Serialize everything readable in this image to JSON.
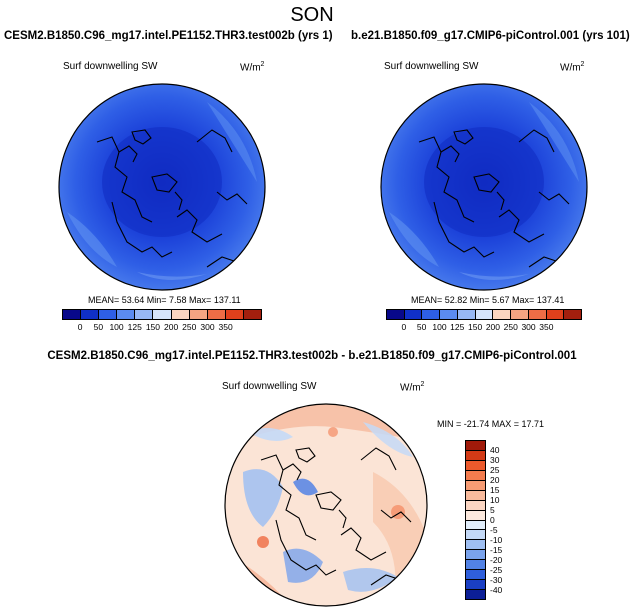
{
  "season": "SON",
  "panels": {
    "left": {
      "case": "CESM2.B1850.C96_mg17.intel.PE1152.THR3.test002b (yrs 1)",
      "variable": "Surf downwelling SW",
      "units_base": "W/m",
      "units_exp": "2",
      "stats": "MEAN=  53.64  Min=   7.58  Max= 137.11"
    },
    "right": {
      "case": "b.e21.B1850.f09_g17.CMIP6-piControl.001 (yrs 101)",
      "variable": "Surf downwelling SW",
      "units_base": "W/m",
      "units_exp": "2",
      "stats": "MEAN=  52.82  Min=   5.67  Max= 137.41"
    },
    "diff": {
      "title": "CESM2.B1850.C96_mg17.intel.PE1152.THR3.test002b - b.e21.B1850.f09_g17.CMIP6-piControl.001",
      "variable": "Surf downwelling SW",
      "units_base": "W/m",
      "units_exp": "2",
      "stats": "MIN = -21.74 MAX =  17.71"
    }
  },
  "colorbar_abs": {
    "labels": [
      "0",
      "50",
      "100",
      "125",
      "150",
      "200",
      "250",
      "300",
      "350"
    ],
    "colors": [
      "#08088a",
      "#1030c8",
      "#2e5fe6",
      "#5b8bf0",
      "#98b8f5",
      "#d6e4fb",
      "#fbd5c0",
      "#f5a482",
      "#ee6d46",
      "#e0401c",
      "#a31f0e"
    ]
  },
  "colorbar_diff": {
    "labels": [
      "40",
      "30",
      "25",
      "20",
      "15",
      "10",
      "5",
      "0",
      "-5",
      "-10",
      "-15",
      "-20",
      "-25",
      "-30",
      "-40"
    ],
    "colors": [
      "#a01a0a",
      "#d33a16",
      "#ec5a2c",
      "#f47c4e",
      "#f79c74",
      "#f9bb9d",
      "#fbd6c3",
      "#fce9de",
      "#e2eefb",
      "#c4d9f7",
      "#9fbff2",
      "#7aa3ec",
      "#5282e5",
      "#2f5fdc",
      "#1a3fc4",
      "#0c1f96"
    ]
  },
  "icons": {
    "polar_map": "polar-stereographic-map-icon"
  }
}
